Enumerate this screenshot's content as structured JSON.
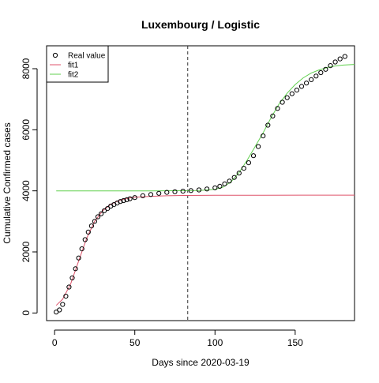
{
  "chart_data": {
    "type": "scatter",
    "title": "Luxembourg / Logistic",
    "xlabel": "Days since 2020-03-19",
    "ylabel": "Cumulative Confirmed cases",
    "xlim": [
      -5,
      187
    ],
    "ylim": [
      -250,
      8750
    ],
    "x_ticks": [
      0,
      50,
      100,
      150
    ],
    "y_ticks": [
      0,
      2000,
      4000,
      6000,
      8000
    ],
    "x_tick_labels": [
      "0",
      "50",
      "100",
      "150"
    ],
    "y_tick_labels": [
      "0",
      "2000",
      "4000",
      "6000",
      "8000"
    ],
    "vertical_line": {
      "x": 83,
      "style": "dashed",
      "color": "#333333"
    },
    "grid": false,
    "legend_position": "top-left",
    "series": [
      {
        "name": "Real value",
        "kind": "points",
        "marker": "open-circle",
        "color": "#000000",
        "points": [
          [
            1,
            30
          ],
          [
            3,
            100
          ],
          [
            5,
            280
          ],
          [
            7,
            550
          ],
          [
            9,
            850
          ],
          [
            11,
            1150
          ],
          [
            13,
            1450
          ],
          [
            15,
            1800
          ],
          [
            17,
            2100
          ],
          [
            19,
            2400
          ],
          [
            21,
            2650
          ],
          [
            23,
            2850
          ],
          [
            25,
            3000
          ],
          [
            27,
            3150
          ],
          [
            29,
            3250
          ],
          [
            31,
            3350
          ],
          [
            33,
            3420
          ],
          [
            35,
            3500
          ],
          [
            37,
            3550
          ],
          [
            39,
            3600
          ],
          [
            41,
            3650
          ],
          [
            43,
            3680
          ],
          [
            45,
            3710
          ],
          [
            47,
            3740
          ],
          [
            50,
            3780
          ],
          [
            55,
            3840
          ],
          [
            60,
            3880
          ],
          [
            65,
            3920
          ],
          [
            70,
            3950
          ],
          [
            75,
            3970
          ],
          [
            80,
            3990
          ],
          [
            85,
            4010
          ],
          [
            90,
            4030
          ],
          [
            95,
            4060
          ],
          [
            100,
            4100
          ],
          [
            103,
            4150
          ],
          [
            106,
            4230
          ],
          [
            109,
            4320
          ],
          [
            112,
            4440
          ],
          [
            115,
            4580
          ],
          [
            118,
            4740
          ],
          [
            121,
            4920
          ],
          [
            124,
            5150
          ],
          [
            127,
            5450
          ],
          [
            130,
            5800
          ],
          [
            133,
            6150
          ],
          [
            136,
            6450
          ],
          [
            139,
            6700
          ],
          [
            142,
            6900
          ],
          [
            145,
            7050
          ],
          [
            148,
            7180
          ],
          [
            151,
            7300
          ],
          [
            154,
            7420
          ],
          [
            157,
            7530
          ],
          [
            160,
            7640
          ],
          [
            163,
            7760
          ],
          [
            166,
            7870
          ],
          [
            169,
            7980
          ],
          [
            172,
            8100
          ],
          [
            175,
            8220
          ],
          [
            178,
            8320
          ],
          [
            181,
            8400
          ]
        ]
      },
      {
        "name": "fit1",
        "kind": "line",
        "color": "#df536b",
        "points": [
          [
            1,
            250
          ],
          [
            5,
            450
          ],
          [
            10,
            950
          ],
          [
            15,
            1700
          ],
          [
            20,
            2450
          ],
          [
            25,
            3000
          ],
          [
            30,
            3350
          ],
          [
            35,
            3560
          ],
          [
            40,
            3680
          ],
          [
            45,
            3750
          ],
          [
            50,
            3790
          ],
          [
            60,
            3820
          ],
          [
            70,
            3840
          ],
          [
            80,
            3850
          ],
          [
            100,
            3855
          ],
          [
            130,
            3858
          ],
          [
            160,
            3860
          ],
          [
            187,
            3860
          ]
        ]
      },
      {
        "name": "fit2",
        "kind": "line",
        "color": "#61d04f",
        "points": [
          [
            1,
            4000
          ],
          [
            60,
            4000
          ],
          [
            90,
            4010
          ],
          [
            100,
            4050
          ],
          [
            105,
            4120
          ],
          [
            110,
            4300
          ],
          [
            115,
            4600
          ],
          [
            120,
            5000
          ],
          [
            125,
            5450
          ],
          [
            130,
            5900
          ],
          [
            135,
            6400
          ],
          [
            140,
            6850
          ],
          [
            145,
            7200
          ],
          [
            150,
            7480
          ],
          [
            155,
            7700
          ],
          [
            160,
            7860
          ],
          [
            165,
            7960
          ],
          [
            170,
            8040
          ],
          [
            175,
            8090
          ],
          [
            180,
            8120
          ],
          [
            187,
            8140
          ]
        ]
      }
    ]
  }
}
